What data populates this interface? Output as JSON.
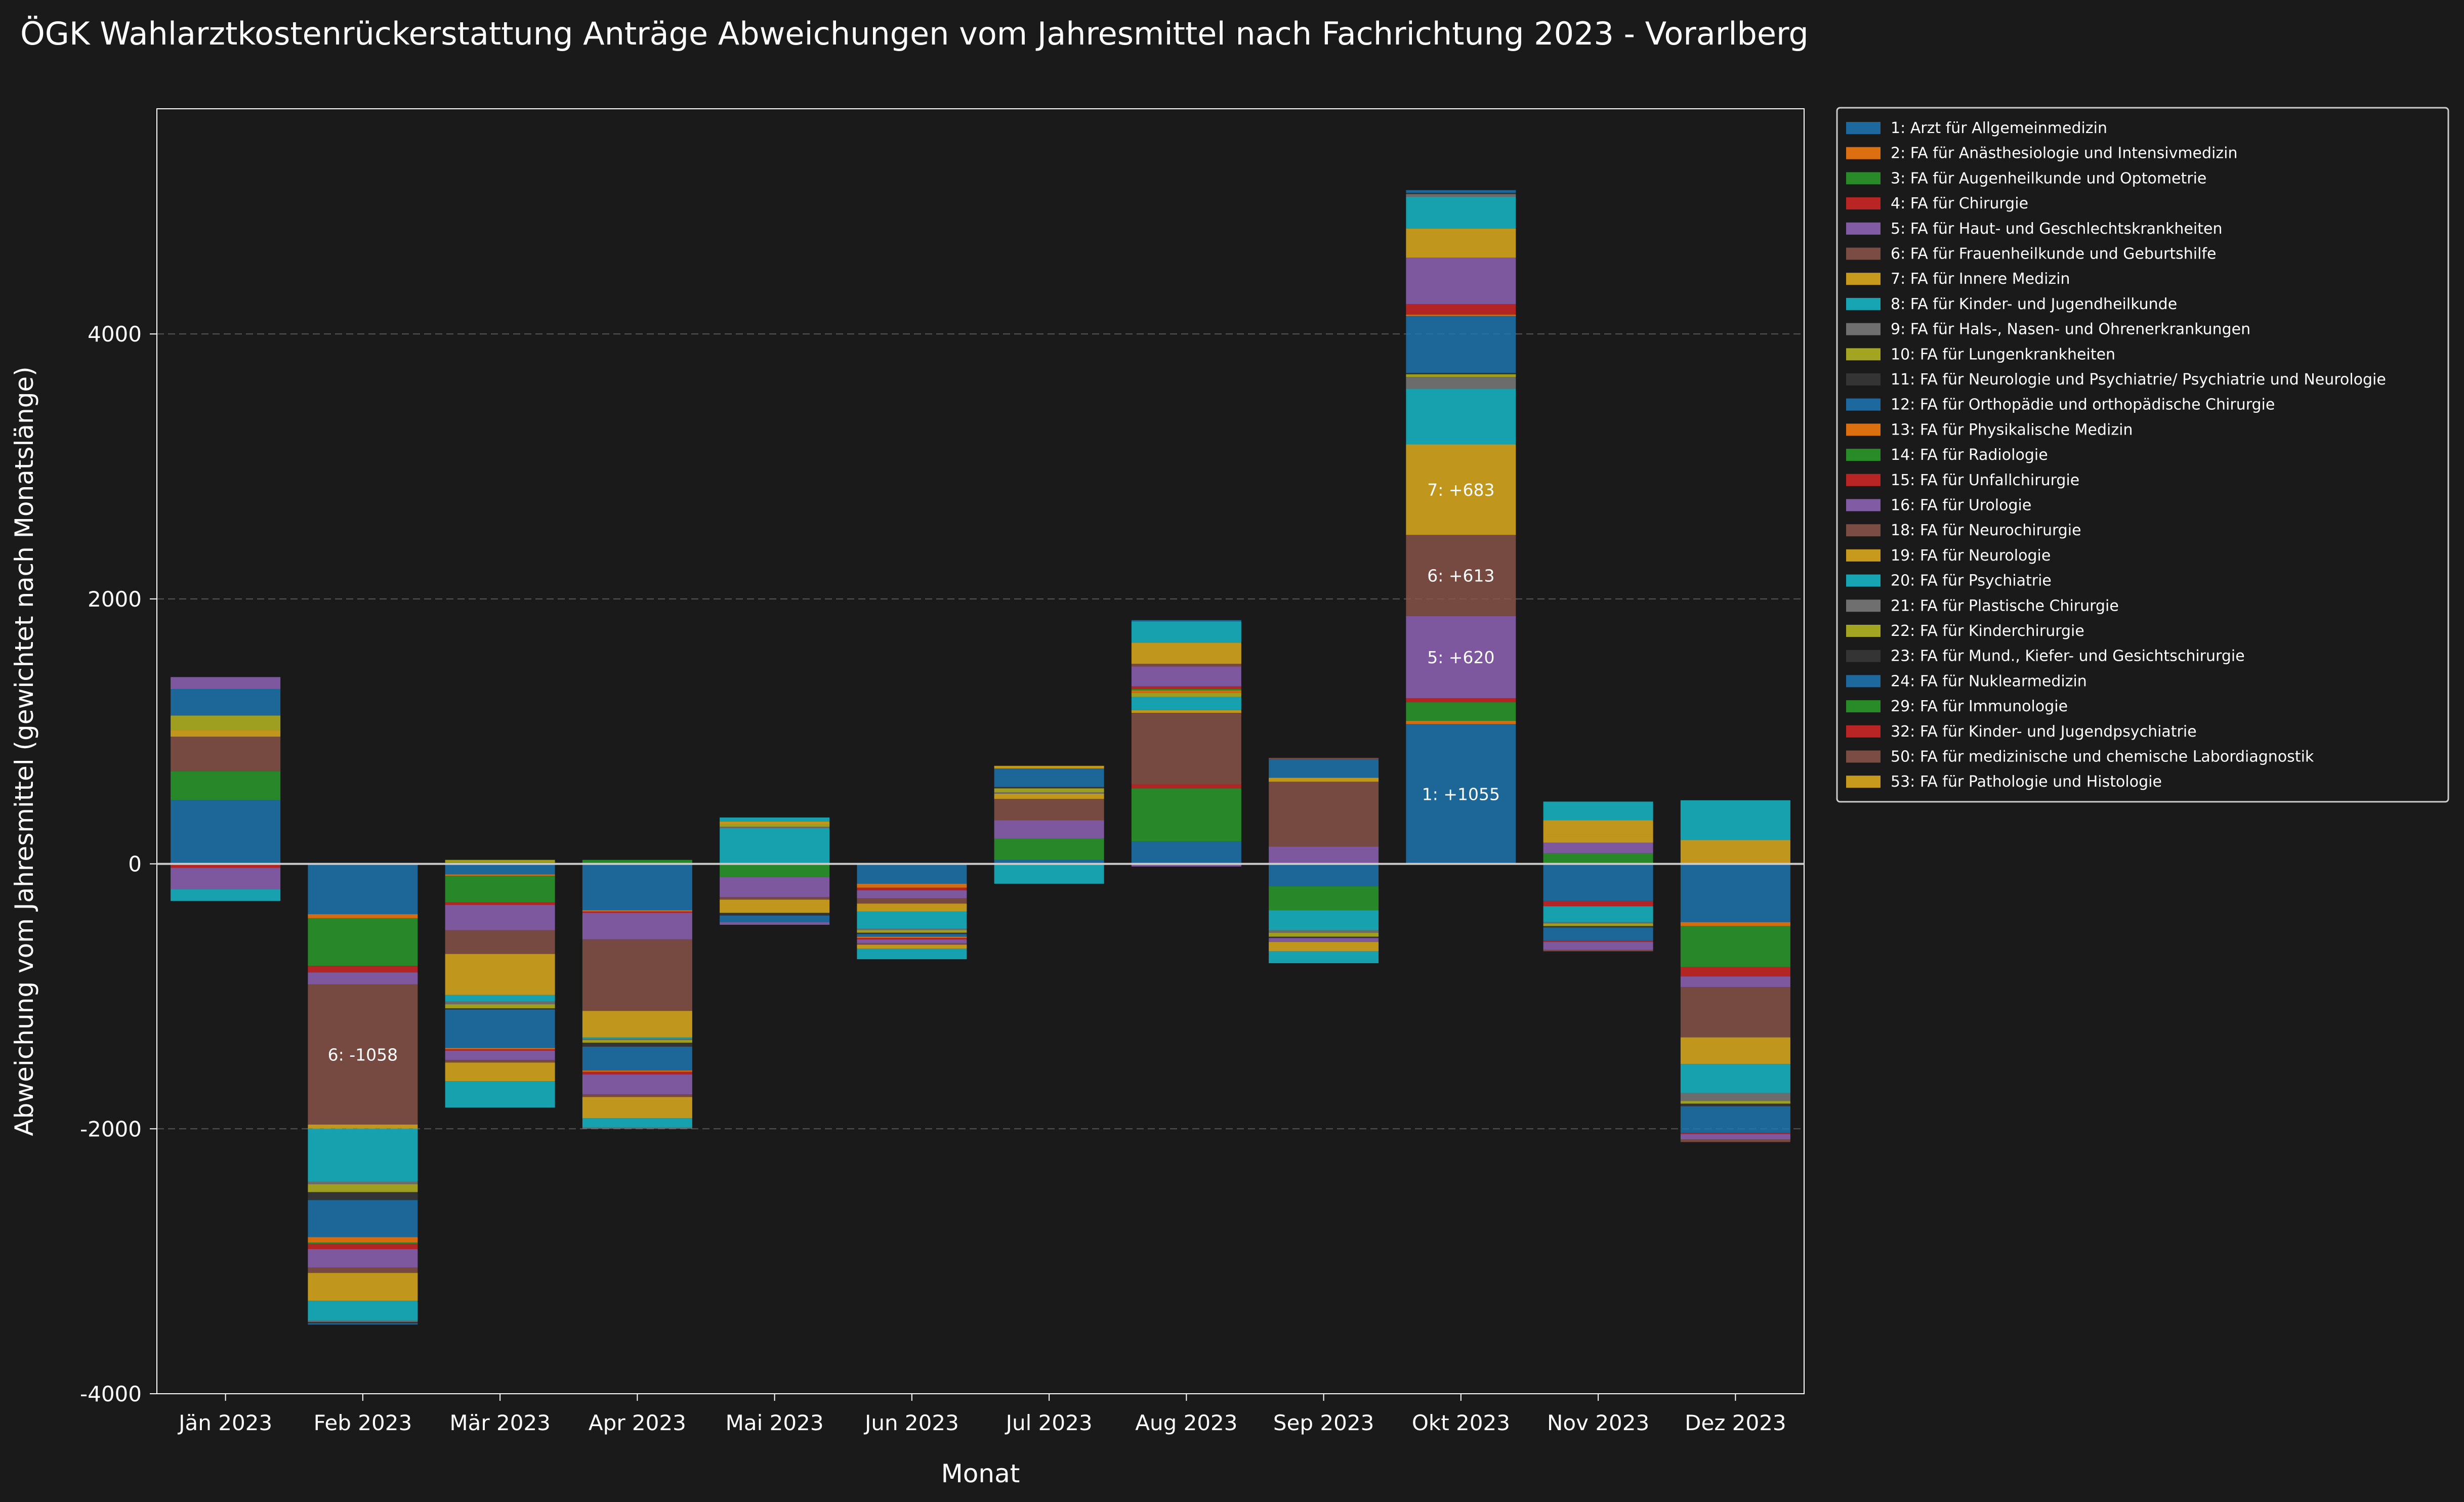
{
  "chart_data": {
    "type": "bar",
    "stacked": true,
    "title": "ÖGK Wahlarztkostenrückerstattung Anträge Abweichungen vom Jahresmittel nach Fachrichtung 2023 - Vorarlberg",
    "xlabel": "Monat",
    "ylabel": "Abweichung vom Jahresmittel (gewichtet nach Monatslänge)",
    "ylim": [
      -4000,
      5700
    ],
    "yticks": [
      -4000,
      -2000,
      0,
      2000,
      4000
    ],
    "grid": "y-dashed",
    "legend_position": "right-outside",
    "categories": [
      "Jän 2023",
      "Feb 2023",
      "Mär 2023",
      "Apr 2023",
      "Mai 2023",
      "Jun 2023",
      "Jul 2023",
      "Aug 2023",
      "Sep 2023",
      "Okt 2023",
      "Nov 2023",
      "Dez 2023"
    ],
    "series": [
      {
        "name": "1: Arzt für Allgemeinmedizin",
        "color": "#1f77b4",
        "values": [
          480,
          -380,
          -80,
          -350,
          0,
          -150,
          30,
          170,
          -170,
          1055,
          -280,
          -440
        ]
      },
      {
        "name": "2: FA für Anästhesiologie und Intensivmedizin",
        "color": "#ff7f0e",
        "values": [
          0,
          -30,
          -10,
          -10,
          0,
          -30,
          0,
          0,
          0,
          25,
          0,
          -30
        ]
      },
      {
        "name": "3: FA für Augenheilkunde und Optometrie",
        "color": "#2ca02c",
        "values": [
          220,
          -360,
          -200,
          0,
          -100,
          0,
          160,
          400,
          -180,
          140,
          80,
          -310
        ]
      },
      {
        "name": "4: FA für Chirurgie",
        "color": "#d62728",
        "values": [
          -30,
          -50,
          -20,
          -10,
          0,
          -20,
          0,
          30,
          0,
          30,
          -40,
          -70
        ]
      },
      {
        "name": "5: FA für Haut- und Geschlechtskrankheiten",
        "color": "#9467bd",
        "values": [
          -160,
          -90,
          -190,
          -200,
          -150,
          -60,
          140,
          -20,
          130,
          620,
          80,
          -80
        ]
      },
      {
        "name": "6: FA für Frauenheilkunde und Geburtshilfe",
        "color": "#8c564b",
        "values": [
          260,
          -1058,
          -180,
          -540,
          -20,
          -40,
          160,
          540,
          490,
          613,
          0,
          -380
        ]
      },
      {
        "name": "7: FA für Innere Medizin",
        "color": "#e6b21e",
        "values": [
          50,
          -30,
          -310,
          -200,
          -100,
          -60,
          40,
          20,
          30,
          683,
          60,
          -200
        ]
      },
      {
        "name": "8: FA für Kinder- und Jugendheilkunde",
        "color": "#17becf",
        "values": [
          -90,
          -400,
          -50,
          -10,
          270,
          -130,
          -150,
          100,
          -150,
          420,
          -120,
          -220
        ]
      },
      {
        "name": "9: FA für Hals-, Nasen- und Ohrenerkrankungen",
        "color": "#7f7f7f",
        "values": [
          0,
          -20,
          -20,
          -10,
          10,
          -10,
          10,
          0,
          -20,
          90,
          -10,
          -60
        ]
      },
      {
        "name": "10: FA für Lungenkrankheiten",
        "color": "#bcbd22",
        "values": [
          110,
          -60,
          -30,
          -20,
          20,
          -20,
          30,
          30,
          -30,
          20,
          -20,
          -20
        ]
      },
      {
        "name": "11: FA für Neurologie und Psychiatrie/ Psychiatrie und Neurologie",
        "color": "#3a3a3a",
        "values": [
          0,
          -60,
          -10,
          -30,
          -20,
          -10,
          10,
          0,
          -10,
          10,
          -10,
          -20
        ]
      },
      {
        "name": "12: FA für Orthopädie und orthopädische Chirurgie",
        "color": "#1f77b4",
        "values": [
          200,
          -280,
          -290,
          -180,
          -50,
          -20,
          140,
          0,
          140,
          430,
          -100,
          -200
        ]
      },
      {
        "name": "13: FA für Physikalische Medizin",
        "color": "#ff7f0e",
        "values": [
          0,
          -40,
          -10,
          -10,
          0,
          -10,
          0,
          20,
          0,
          10,
          0,
          0
        ]
      },
      {
        "name": "14: FA für Radiologie",
        "color": "#2ca02c",
        "values": [
          0,
          -10,
          10,
          30,
          0,
          0,
          0,
          10,
          0,
          0,
          0,
          0
        ]
      },
      {
        "name": "15: FA für Unfallchirurgie",
        "color": "#d62728",
        "values": [
          0,
          -40,
          -10,
          -20,
          0,
          -10,
          0,
          20,
          0,
          80,
          -10,
          -10
        ]
      },
      {
        "name": "16: FA für Urologie",
        "color": "#9467bd",
        "values": [
          90,
          -140,
          -70,
          -150,
          -20,
          -30,
          0,
          150,
          -30,
          350,
          -60,
          -40
        ]
      },
      {
        "name": "18: FA für Neurochirurgie",
        "color": "#8c564b",
        "values": [
          0,
          -40,
          -20,
          -20,
          0,
          -10,
          0,
          20,
          10,
          0,
          -10,
          -20
        ]
      },
      {
        "name": "19: FA für Neurologie",
        "color": "#e6b21e",
        "values": [
          0,
          -210,
          -140,
          -160,
          20,
          -30,
          20,
          160,
          -70,
          220,
          110,
          180
        ]
      },
      {
        "name": "20: FA für Psychiatrie",
        "color": "#17becf",
        "values": [
          0,
          -150,
          -200,
          -70,
          30,
          -80,
          0,
          160,
          -90,
          240,
          140,
          300
        ]
      },
      {
        "name": "21: FA für Plastische Chirurgie",
        "color": "#7f7f7f",
        "values": [
          0,
          -10,
          0,
          -10,
          0,
          0,
          0,
          0,
          0,
          20,
          0,
          0
        ]
      },
      {
        "name": "22: FA für Kinderchirurgie",
        "color": "#bcbd22",
        "values": [
          0,
          0,
          20,
          0,
          0,
          0,
          0,
          0,
          0,
          0,
          0,
          0
        ]
      },
      {
        "name": "23: FA für Mund., Kiefer- und Gesichtschirurgie",
        "color": "#3a3a3a",
        "values": [
          0,
          -10,
          0,
          0,
          0,
          0,
          0,
          0,
          0,
          10,
          0,
          0
        ]
      },
      {
        "name": "24: FA für Nuklearmedizin",
        "color": "#1f77b4",
        "values": [
          0,
          -10,
          0,
          0,
          0,
          0,
          0,
          10,
          0,
          20,
          0,
          0
        ]
      },
      {
        "name": "29: FA für Immunologie",
        "color": "#2ca02c",
        "values": [
          0,
          0,
          0,
          0,
          0,
          0,
          0,
          0,
          0,
          0,
          0,
          0
        ]
      },
      {
        "name": "32: FA für Kinder- und Jugendpsychiatrie",
        "color": "#d62728",
        "values": [
          0,
          0,
          0,
          0,
          0,
          0,
          0,
          0,
          0,
          0,
          0,
          0
        ]
      },
      {
        "name": "50: FA für medizinische und chemische Labordiagnostik",
        "color": "#8c564b",
        "values": [
          0,
          0,
          0,
          0,
          0,
          0,
          0,
          0,
          0,
          0,
          0,
          0
        ]
      },
      {
        "name": "53: FA für Pathologie und Histologie",
        "color": "#e6b21e",
        "values": [
          0,
          0,
          0,
          0,
          0,
          0,
          0,
          0,
          0,
          0,
          0,
          0
        ]
      }
    ],
    "annotations": [
      {
        "text": "6: -1058"
      },
      {
        "text": "1: +1055"
      },
      {
        "text": "5: +620"
      },
      {
        "text": "6: +613"
      },
      {
        "text": "7: +683"
      }
    ],
    "colors": {
      "background": "#1a1a1a",
      "grid": "#555555",
      "text": "#ffffff",
      "zero_line": "#cccccc"
    }
  }
}
